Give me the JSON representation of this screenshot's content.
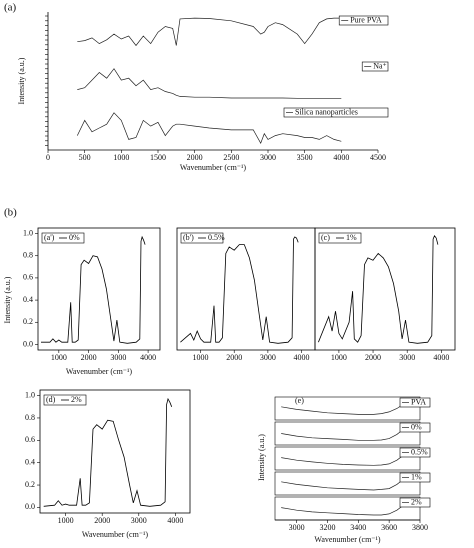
{
  "figure": {
    "panel_labels": [
      "(a)",
      "(b)"
    ],
    "y_label": "Intensity (a.u.)"
  },
  "chart_data": [
    {
      "type": "stacked-line",
      "x_label": "Wavenumber (cm⁻¹)",
      "y_label": "Intensity (a.u.)",
      "xlim": [
        0,
        4500
      ],
      "xticks": [
        0,
        500,
        1000,
        1500,
        2000,
        2500,
        3000,
        3500,
        4000,
        4500
      ],
      "x": [
        400,
        500,
        600,
        700,
        800,
        900,
        1000,
        1100,
        1200,
        1300,
        1400,
        1500,
        1600,
        1700,
        1750,
        1800,
        2000,
        2200,
        2500,
        2800,
        2900,
        2950,
        3000,
        3100,
        3200,
        3400,
        3500,
        3600,
        3700,
        3800,
        3900,
        4000
      ],
      "series": [
        {
          "name": "Pure PVA",
          "color": "#222222",
          "values": [
            0.35,
            0.38,
            0.45,
            0.3,
            0.4,
            0.55,
            0.42,
            0.5,
            0.25,
            0.5,
            0.3,
            0.6,
            0.75,
            0.7,
            0.25,
            0.95,
            0.97,
            0.96,
            0.9,
            0.75,
            0.55,
            0.6,
            0.75,
            0.85,
            0.8,
            0.55,
            0.3,
            0.55,
            0.85,
            0.95,
            0.97,
            0.97
          ]
        },
        {
          "name": "Na⁺",
          "color": "#222222",
          "values": [
            0.3,
            0.35,
            0.55,
            0.75,
            0.6,
            0.85,
            0.55,
            0.6,
            0.4,
            0.55,
            0.3,
            0.35,
            0.25,
            0.2,
            0.15,
            0.12,
            0.1,
            0.1,
            0.08,
            0.08,
            0.08,
            0.08,
            0.08,
            0.08,
            0.08,
            0.07,
            0.07,
            0.07,
            0.07,
            0.07,
            0.07,
            0.07
          ]
        },
        {
          "name": "Silica nanoparticles",
          "color": "#222222",
          "values": [
            0.3,
            0.7,
            0.4,
            0.5,
            0.6,
            0.9,
            0.7,
            0.2,
            0.25,
            0.7,
            0.55,
            0.65,
            0.3,
            0.55,
            0.6,
            0.6,
            0.55,
            0.5,
            0.45,
            0.45,
            0.1,
            0.35,
            0.2,
            0.3,
            0.35,
            0.3,
            0.25,
            0.25,
            0.2,
            0.3,
            0.2,
            0.15
          ]
        }
      ]
    },
    {
      "type": "line",
      "tag": "(a')",
      "x_label": "Wavenumber (cm⁻¹)",
      "xlim": [
        300,
        4400
      ],
      "ylim": [
        -0.05,
        1.05
      ],
      "xticks": [
        1000,
        2000,
        3000,
        4000
      ],
      "yticks": [
        {
          "value": 0,
          "label": "0.0"
        },
        0.2,
        0.4,
        0.6,
        0.8,
        {
          "value": 1,
          "label": "1.0"
        }
      ],
      "x": [
        400,
        700,
        800,
        900,
        1000,
        1100,
        1300,
        1400,
        1450,
        1550,
        1650,
        1750,
        1850,
        2000,
        2150,
        2300,
        2450,
        2600,
        2750,
        2850,
        2950,
        3050,
        3300,
        3600,
        3720,
        3760,
        3800,
        3850,
        3900
      ],
      "series": [
        {
          "name": "0%",
          "color": "#000000",
          "values": [
            0.02,
            0.02,
            0.05,
            0.02,
            0.04,
            0.02,
            0.02,
            0.38,
            0.02,
            0.02,
            0.04,
            0.72,
            0.76,
            0.73,
            0.8,
            0.79,
            0.68,
            0.5,
            0.22,
            0.03,
            0.22,
            0.02,
            0.01,
            0.02,
            0.05,
            0.93,
            0.97,
            0.94,
            0.9
          ]
        }
      ]
    },
    {
      "type": "line",
      "tag": "(b')",
      "xlim": [
        300,
        4400
      ],
      "ylim": [
        -0.05,
        1.05
      ],
      "xticks": [
        1000,
        2000,
        3000,
        4000
      ],
      "x": [
        400,
        700,
        800,
        900,
        1000,
        1100,
        1300,
        1400,
        1450,
        1550,
        1650,
        1750,
        1850,
        2000,
        2150,
        2300,
        2450,
        2600,
        2750,
        2850,
        2950,
        3050,
        3300,
        3600,
        3720,
        3760,
        3800,
        3850,
        3900
      ],
      "series": [
        {
          "name": "0.5%",
          "color": "#000000",
          "values": [
            0.02,
            0.1,
            0.04,
            0.12,
            0.05,
            0.02,
            0.02,
            0.35,
            0.02,
            0.02,
            0.06,
            0.82,
            0.88,
            0.85,
            0.9,
            0.9,
            0.78,
            0.58,
            0.25,
            0.04,
            0.25,
            0.02,
            0.01,
            0.02,
            0.06,
            0.95,
            0.97,
            0.96,
            0.92
          ]
        }
      ]
    },
    {
      "type": "line",
      "tag": "(c)",
      "xlim": [
        300,
        4400
      ],
      "ylim": [
        -0.05,
        1.05
      ],
      "xticks": [
        1000,
        2000,
        3000,
        4000
      ],
      "x": [
        400,
        700,
        800,
        900,
        1000,
        1100,
        1300,
        1400,
        1450,
        1550,
        1650,
        1750,
        1850,
        2000,
        2150,
        2300,
        2450,
        2600,
        2750,
        2850,
        2950,
        3050,
        3300,
        3600,
        3720,
        3760,
        3800,
        3850,
        3900
      ],
      "series": [
        {
          "name": "1%",
          "color": "#000000",
          "values": [
            0.02,
            0.25,
            0.12,
            0.3,
            0.1,
            0.05,
            0.2,
            0.48,
            0.05,
            0.02,
            0.08,
            0.72,
            0.78,
            0.76,
            0.82,
            0.78,
            0.7,
            0.55,
            0.3,
            0.05,
            0.22,
            0.02,
            0.01,
            0.02,
            0.08,
            0.95,
            0.98,
            0.96,
            0.9
          ]
        }
      ]
    },
    {
      "type": "line",
      "tag": "(d)",
      "x_label": "Wavenumber (cm⁻¹)",
      "xlim": [
        300,
        4400
      ],
      "ylim": [
        -0.05,
        1.05
      ],
      "xticks": [
        1000,
        2000,
        3000,
        4000
      ],
      "yticks": [
        {
          "value": 0,
          "label": "0.0"
        },
        0.2,
        0.4,
        0.6,
        0.8,
        {
          "value": 1,
          "label": "1.0"
        }
      ],
      "x": [
        400,
        700,
        800,
        900,
        1000,
        1100,
        1300,
        1400,
        1450,
        1550,
        1650,
        1750,
        1850,
        2000,
        2150,
        2300,
        2450,
        2600,
        2750,
        2850,
        2950,
        3050,
        3300,
        3600,
        3720,
        3760,
        3800,
        3850,
        3900
      ],
      "series": [
        {
          "name": "2%",
          "color": "#000000",
          "values": [
            0.01,
            0.02,
            0.06,
            0.02,
            0.03,
            0.02,
            0.02,
            0.26,
            0.02,
            0.02,
            0.04,
            0.7,
            0.74,
            0.7,
            0.78,
            0.77,
            0.6,
            0.45,
            0.2,
            0.04,
            0.15,
            0.02,
            0.01,
            0.02,
            0.05,
            0.92,
            0.97,
            0.94,
            0.9
          ]
        }
      ]
    },
    {
      "type": "stacked-line",
      "tag": "(e)",
      "x_label": "Wavenumber (cm⁻¹)",
      "y_label": "Intensity (a.u.)",
      "xlim": [
        2860,
        3800
      ],
      "xticks": [
        3000,
        3200,
        3400,
        3600,
        3800
      ],
      "x": [
        2900,
        3000,
        3100,
        3200,
        3300,
        3400,
        3500,
        3550,
        3600,
        3650,
        3700,
        3750
      ],
      "series": [
        {
          "name": "PVA",
          "color": "#222222",
          "values": [
            0.6,
            0.45,
            0.35,
            0.25,
            0.2,
            0.15,
            0.15,
            0.2,
            0.3,
            0.5,
            0.8,
            0.95
          ]
        },
        {
          "name": "0%",
          "color": "#222222",
          "values": [
            0.5,
            0.35,
            0.25,
            0.2,
            0.15,
            0.1,
            0.1,
            0.12,
            0.2,
            0.45,
            0.8,
            0.95
          ]
        },
        {
          "name": "0.5%",
          "color": "#222222",
          "values": [
            0.55,
            0.4,
            0.3,
            0.22,
            0.15,
            0.12,
            0.1,
            0.12,
            0.18,
            0.4,
            0.75,
            0.95
          ]
        },
        {
          "name": "1%",
          "color": "#222222",
          "values": [
            0.6,
            0.45,
            0.35,
            0.25,
            0.2,
            0.15,
            0.12,
            0.15,
            0.2,
            0.45,
            0.8,
            0.95
          ]
        },
        {
          "name": "2%",
          "color": "#222222",
          "values": [
            0.55,
            0.4,
            0.3,
            0.25,
            0.2,
            0.15,
            0.12,
            0.12,
            0.18,
            0.4,
            0.75,
            0.95
          ]
        }
      ]
    }
  ]
}
